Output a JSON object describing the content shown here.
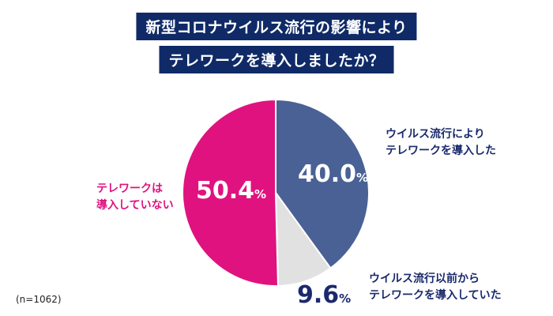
{
  "title_lines": [
    "新型コロナウイルス流行の影響により",
    "テレワークを導入しましたか？"
  ],
  "note": "(n=1062)",
  "colors": {
    "title_bg": "#0f2a66",
    "introduced": "#4a6195",
    "before": "#e1e1e1",
    "not_introduced": "#e0127f",
    "navy_text": "#1a2a6c"
  },
  "chart_data": {
    "type": "pie",
    "title": "新型コロナウイルス流行の影響によりテレワークを導入しましたか？",
    "unit": "%",
    "slices": [
      {
        "label_lines": [
          "ウイルス流行により",
          "テレワークを導入した"
        ],
        "value": 40.0,
        "value_text": "40.0",
        "color": "#4a6195"
      },
      {
        "label_lines": [
          "ウイルス流行以前から",
          "テレワークを導入していた"
        ],
        "value": 9.6,
        "value_text": "9.6",
        "color": "#e1e1e1"
      },
      {
        "label_lines": [
          "テレワークは",
          "導入していない"
        ],
        "value": 50.4,
        "value_text": "50.4",
        "color": "#e0127f"
      }
    ]
  }
}
